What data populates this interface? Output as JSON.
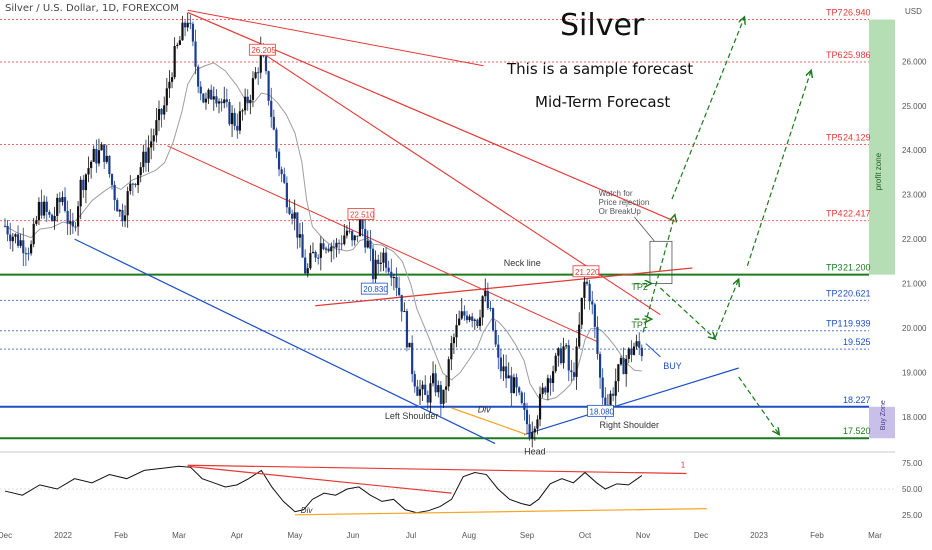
{
  "header": {
    "symbol": "Silver / U.S. Dollar, 1D, FOREXCOM"
  },
  "annotations": {
    "title": "Silver",
    "subtitle1": "This is a sample forecast",
    "subtitle2": "Mid-Term Forecast",
    "watch_text": [
      "Watch for",
      "Price rejection",
      "Or BreakUp"
    ],
    "neckline": "Neck line",
    "left_shoulder": "Left Shoulder",
    "right_shoulder": "Right Shoulder",
    "head": "Head",
    "div_main": "Div",
    "div_osc": "Div",
    "buy": "BUY",
    "tp2_marker": "TP2",
    "tp1_marker": "TP1",
    "profit_zone": "profit zone",
    "buy_zone": "Buy Zone",
    "osc_marker": "1"
  },
  "colors": {
    "red": "#e53935",
    "green": "#1b7a1b",
    "blue": "#1e4fc4",
    "orange": "#f5a623",
    "candle_up": "#111111",
    "candle_down": "#1a3d8f"
  },
  "chart_data": [
    {
      "type": "candlestick",
      "ylabel": "USD",
      "ylim": [
        17.3,
        27.2
      ],
      "y_ticks": [
        18.0,
        19.0,
        20.0,
        21.0,
        22.0,
        23.0,
        24.0,
        25.0,
        26.0
      ],
      "y_tick_labels": [
        "18.000",
        "19.000",
        "20.000",
        "21.000",
        "22.000",
        "23.000",
        "24.000",
        "25.000",
        "26.000"
      ],
      "x_ticks": [
        "Dec",
        "2022",
        "Feb",
        "Mar",
        "Apr",
        "May",
        "Jun",
        "Jul",
        "Aug",
        "Sep",
        "Oct",
        "Nov",
        "Dec",
        "2023",
        "Feb",
        "Mar"
      ],
      "x_tick_months": [
        0,
        1,
        2,
        3,
        4,
        5,
        6,
        7,
        8,
        9,
        10,
        11,
        12,
        13,
        14,
        15
      ],
      "levels": [
        {
          "label": "TP7",
          "value": 26.94,
          "text": "26.940",
          "color": "#e53935",
          "style": "dotted"
        },
        {
          "label": "TP6",
          "value": 25.986,
          "text": "25.986",
          "color": "#e53935",
          "style": "dotted"
        },
        {
          "label": "TP5",
          "value": 24.129,
          "text": "24.129",
          "color": "#e53935",
          "style": "dotted"
        },
        {
          "label": "TP4",
          "value": 22.417,
          "text": "22.417",
          "color": "#e53935",
          "style": "dotted"
        },
        {
          "label": "TP3",
          "value": 21.2,
          "text": "21.200",
          "color": "#1b7a1b",
          "style": "solid"
        },
        {
          "label": "TP2",
          "value": 20.621,
          "text": "20.621",
          "color": "#1e4fc4",
          "style": "dotted"
        },
        {
          "label": "TP1",
          "value": 19.939,
          "text": "19.939",
          "color": "#1e4fc4",
          "style": "dotted"
        },
        {
          "label": "",
          "value": 19.525,
          "text": "19.525",
          "color": "#1e4fc4",
          "style": "dotted"
        },
        {
          "label": "",
          "value": 18.227,
          "text": "18.227",
          "color": "#1e4fc4",
          "style": "solid"
        },
        {
          "label": "",
          "value": 17.52,
          "text": "17.520",
          "color": "#1b7a1b",
          "style": "solid"
        }
      ],
      "price_labels": [
        {
          "text": "26.205",
          "month": 4.42,
          "value": 26.205,
          "color": "#e53935"
        },
        {
          "text": "22.510",
          "month": 6.12,
          "value": 22.51,
          "color": "#e53935"
        },
        {
          "text": "21.220",
          "month": 10.0,
          "value": 21.22,
          "color": "#e53935"
        },
        {
          "text": "20.830",
          "month": 6.35,
          "value": 20.83,
          "color": "#1e4fc4"
        },
        {
          "text": "18.080",
          "month": 10.25,
          "value": 18.08,
          "color": "#1e4fc4"
        }
      ],
      "price_path": [
        [
          0.0,
          22.3
        ],
        [
          0.2,
          22.0
        ],
        [
          0.45,
          21.8
        ],
        [
          0.6,
          22.8
        ],
        [
          0.8,
          22.4
        ],
        [
          1.0,
          23.0
        ],
        [
          1.15,
          22.0
        ],
        [
          1.3,
          23.2
        ],
        [
          1.5,
          23.8
        ],
        [
          1.7,
          24.0
        ],
        [
          1.85,
          23.2
        ],
        [
          2.0,
          22.5
        ],
        [
          2.2,
          23.3
        ],
        [
          2.4,
          23.8
        ],
        [
          2.6,
          24.5
        ],
        [
          2.75,
          25.0
        ],
        [
          2.9,
          26.0
        ],
        [
          3.05,
          26.6
        ],
        [
          3.15,
          27.0
        ],
        [
          3.3,
          25.8
        ],
        [
          3.45,
          25.0
        ],
        [
          3.6,
          25.4
        ],
        [
          3.8,
          24.9
        ],
        [
          4.0,
          24.6
        ],
        [
          4.15,
          25.0
        ],
        [
          4.3,
          25.6
        ],
        [
          4.42,
          26.2
        ],
        [
          4.55,
          25.2
        ],
        [
          4.7,
          23.8
        ],
        [
          4.85,
          23.0
        ],
        [
          5.0,
          22.5
        ],
        [
          5.12,
          21.6
        ],
        [
          5.2,
          21.2
        ],
        [
          5.3,
          21.6
        ],
        [
          5.5,
          22.0
        ],
        [
          5.7,
          21.8
        ],
        [
          5.9,
          22.2
        ],
        [
          6.0,
          21.8
        ],
        [
          6.12,
          22.4
        ],
        [
          6.25,
          21.9
        ],
        [
          6.35,
          21.2
        ],
        [
          6.5,
          21.7
        ],
        [
          6.7,
          21.3
        ],
        [
          6.85,
          20.5
        ],
        [
          7.0,
          19.2
        ],
        [
          7.1,
          18.7
        ],
        [
          7.25,
          18.4
        ],
        [
          7.4,
          18.8
        ],
        [
          7.55,
          18.3
        ],
        [
          7.7,
          19.6
        ],
        [
          7.85,
          20.2
        ],
        [
          8.0,
          20.4
        ],
        [
          8.15,
          20.2
        ],
        [
          8.25,
          20.8
        ],
        [
          8.4,
          20.1
        ],
        [
          8.5,
          19.2
        ],
        [
          8.65,
          18.9
        ],
        [
          8.8,
          18.6
        ],
        [
          8.95,
          18.0
        ],
        [
          9.05,
          17.7
        ],
        [
          9.2,
          18.2
        ],
        [
          9.35,
          18.9
        ],
        [
          9.5,
          19.2
        ],
        [
          9.65,
          19.6
        ],
        [
          9.75,
          18.8
        ],
        [
          9.85,
          19.3
        ],
        [
          9.93,
          20.4
        ],
        [
          10.0,
          21.1
        ],
        [
          10.1,
          20.7
        ],
        [
          10.2,
          19.6
        ],
        [
          10.28,
          18.6
        ],
        [
          10.4,
          18.3
        ],
        [
          10.55,
          18.9
        ],
        [
          10.7,
          19.3
        ],
        [
          10.85,
          19.6
        ],
        [
          10.98,
          19.5
        ]
      ],
      "pattern": {
        "left_shoulder_month": 7.5,
        "head_month": 9.05,
        "right_shoulder_month": 10.4
      }
    },
    {
      "type": "line",
      "name": "oscillator",
      "ylim": [
        20,
        80
      ],
      "y_ticks": [
        25.0,
        50.0,
        75.0
      ],
      "y_tick_labels": [
        "25.00",
        "50.00",
        "75.00"
      ],
      "points": [
        [
          0.0,
          48
        ],
        [
          0.3,
          44
        ],
        [
          0.6,
          54
        ],
        [
          0.9,
          50
        ],
        [
          1.2,
          60
        ],
        [
          1.5,
          56
        ],
        [
          1.8,
          64
        ],
        [
          2.1,
          60
        ],
        [
          2.4,
          68
        ],
        [
          2.7,
          70
        ],
        [
          3.0,
          72
        ],
        [
          3.2,
          71
        ],
        [
          3.4,
          60
        ],
        [
          3.6,
          56
        ],
        [
          3.8,
          52
        ],
        [
          4.0,
          54
        ],
        [
          4.2,
          60
        ],
        [
          4.42,
          68
        ],
        [
          4.6,
          52
        ],
        [
          4.8,
          38
        ],
        [
          5.0,
          28
        ],
        [
          5.15,
          30
        ],
        [
          5.3,
          40
        ],
        [
          5.5,
          46
        ],
        [
          5.7,
          44
        ],
        [
          5.9,
          50
        ],
        [
          6.1,
          52
        ],
        [
          6.3,
          44
        ],
        [
          6.5,
          38
        ],
        [
          6.7,
          40
        ],
        [
          6.9,
          30
        ],
        [
          7.1,
          27
        ],
        [
          7.3,
          29
        ],
        [
          7.5,
          33
        ],
        [
          7.7,
          40
        ],
        [
          7.9,
          62
        ],
        [
          8.1,
          66
        ],
        [
          8.3,
          64
        ],
        [
          8.5,
          50
        ],
        [
          8.7,
          40
        ],
        [
          8.9,
          36
        ],
        [
          9.05,
          34
        ],
        [
          9.2,
          40
        ],
        [
          9.4,
          55
        ],
        [
          9.6,
          60
        ],
        [
          9.8,
          56
        ],
        [
          10.0,
          66
        ],
        [
          10.2,
          56
        ],
        [
          10.35,
          50
        ],
        [
          10.55,
          55
        ],
        [
          10.75,
          54
        ],
        [
          10.98,
          63
        ]
      ]
    }
  ]
}
